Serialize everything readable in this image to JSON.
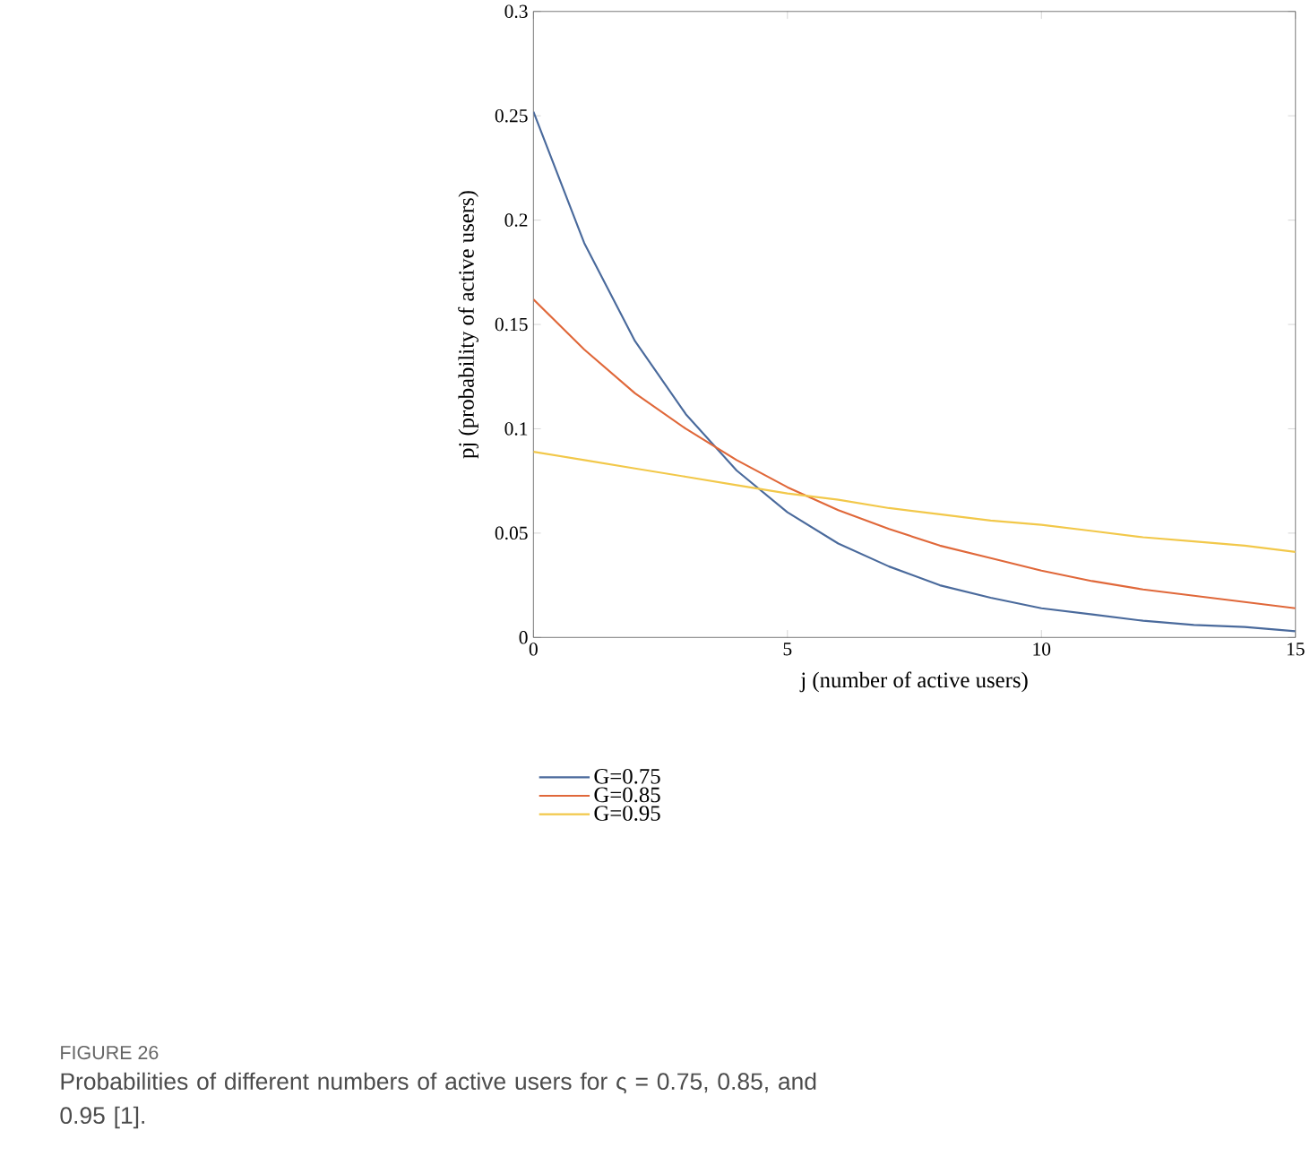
{
  "chart_data": {
    "type": "line",
    "xlabel": "j (number of active users)",
    "ylabel": "pj (probability of active users)",
    "x": [
      0,
      1,
      2,
      3,
      4,
      5,
      6,
      7,
      8,
      9,
      10,
      11,
      12,
      13,
      14,
      15
    ],
    "series": [
      {
        "name": "G=0.75",
        "color": "#4a6a9c",
        "values": [
          0.252,
          0.189,
          0.142,
          0.107,
          0.08,
          0.06,
          0.045,
          0.034,
          0.025,
          0.019,
          0.014,
          0.011,
          0.008,
          0.006,
          0.005,
          0.003
        ]
      },
      {
        "name": "G=0.85",
        "color": "#e0683a",
        "values": [
          0.162,
          0.138,
          0.117,
          0.1,
          0.085,
          0.072,
          0.061,
          0.052,
          0.044,
          0.038,
          0.032,
          0.027,
          0.023,
          0.02,
          0.017,
          0.014
        ]
      },
      {
        "name": "G=0.95",
        "color": "#f2c84a",
        "values": [
          0.089,
          0.085,
          0.081,
          0.077,
          0.073,
          0.069,
          0.066,
          0.062,
          0.059,
          0.056,
          0.054,
          0.051,
          0.048,
          0.046,
          0.044,
          0.041
        ]
      }
    ],
    "xlim": [
      0,
      15
    ],
    "ylim": [
      0,
      0.3
    ],
    "xticks": [
      0,
      5,
      10,
      15
    ],
    "yticks": [
      0,
      0.05,
      0.1,
      0.15,
      0.2,
      0.25,
      0.3
    ],
    "legend": "bottom left",
    "line_style": "solid",
    "annotations": [
      "FIGURE 26",
      "Probabilities of different numbers of active users for ς = 0.75, 0.85, and 0.95 [1]."
    ]
  }
}
